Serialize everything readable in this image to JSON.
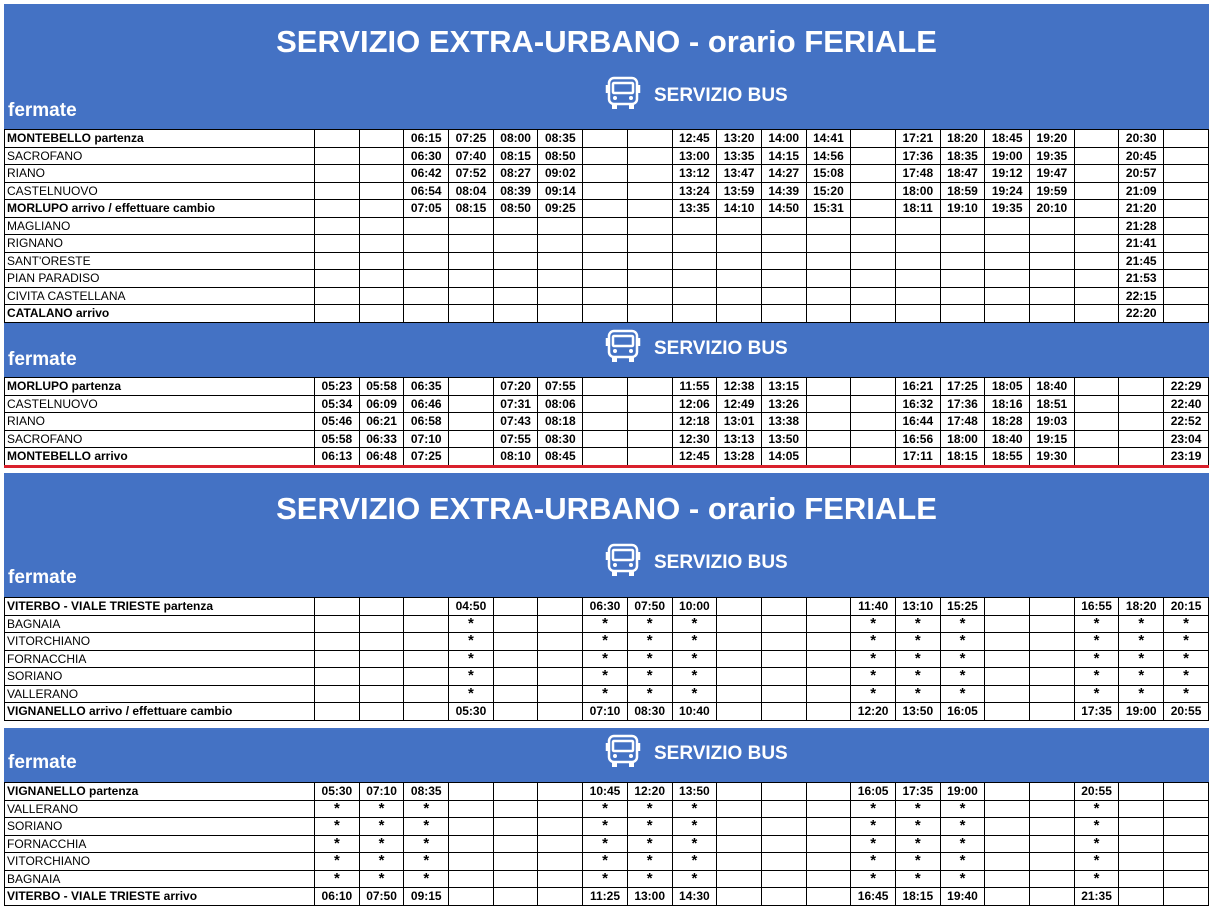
{
  "page_title": "SERVIZIO EXTRA-URBANO - orario FERIALE",
  "fermate_label": "fermate",
  "service_label": "SERVIZIO BUS",
  "icon": "bus-icon",
  "colors": {
    "banner": "#4472c4",
    "divider": "#d9202c"
  },
  "tables": [
    {
      "rows": [
        {
          "stop": "MONTEBELLO partenza",
          "strong": true,
          "times": [
            "",
            "",
            "06:15",
            "07:25",
            "08:00",
            "08:35",
            "",
            "",
            "12:45",
            "13:20",
            "14:00",
            "14:41",
            "",
            "17:21",
            "18:20",
            "18:45",
            "19:20",
            "",
            "20:30",
            ""
          ]
        },
        {
          "stop": "SACROFANO",
          "strong": false,
          "times": [
            "",
            "",
            "06:30",
            "07:40",
            "08:15",
            "08:50",
            "",
            "",
            "13:00",
            "13:35",
            "14:15",
            "14:56",
            "",
            "17:36",
            "18:35",
            "19:00",
            "19:35",
            "",
            "20:45",
            ""
          ]
        },
        {
          "stop": "RIANO",
          "strong": false,
          "times": [
            "",
            "",
            "06:42",
            "07:52",
            "08:27",
            "09:02",
            "",
            "",
            "13:12",
            "13:47",
            "14:27",
            "15:08",
            "",
            "17:48",
            "18:47",
            "19:12",
            "19:47",
            "",
            "20:57",
            ""
          ]
        },
        {
          "stop": "CASTELNUOVO",
          "strong": false,
          "times": [
            "",
            "",
            "06:54",
            "08:04",
            "08:39",
            "09:14",
            "",
            "",
            "13:24",
            "13:59",
            "14:39",
            "15:20",
            "",
            "18:00",
            "18:59",
            "19:24",
            "19:59",
            "",
            "21:09",
            ""
          ]
        },
        {
          "stop": "MORLUPO arrivo / effettuare cambio",
          "strong": true,
          "times": [
            "",
            "",
            "07:05",
            "08:15",
            "08:50",
            "09:25",
            "",
            "",
            "13:35",
            "14:10",
            "14:50",
            "15:31",
            "",
            "18:11",
            "19:10",
            "19:35",
            "20:10",
            "",
            "21:20",
            ""
          ]
        },
        {
          "stop": "MAGLIANO",
          "strong": false,
          "times": [
            "",
            "",
            "",
            "",
            "",
            "",
            "",
            "",
            "",
            "",
            "",
            "",
            "",
            "",
            "",
            "",
            "",
            "",
            "21:28",
            ""
          ]
        },
        {
          "stop": "RIGNANO",
          "strong": false,
          "times": [
            "",
            "",
            "",
            "",
            "",
            "",
            "",
            "",
            "",
            "",
            "",
            "",
            "",
            "",
            "",
            "",
            "",
            "",
            "21:41",
            ""
          ]
        },
        {
          "stop": "SANT'ORESTE",
          "strong": false,
          "times": [
            "",
            "",
            "",
            "",
            "",
            "",
            "",
            "",
            "",
            "",
            "",
            "",
            "",
            "",
            "",
            "",
            "",
            "",
            "21:45",
            ""
          ]
        },
        {
          "stop": "PIAN PARADISO",
          "strong": false,
          "times": [
            "",
            "",
            "",
            "",
            "",
            "",
            "",
            "",
            "",
            "",
            "",
            "",
            "",
            "",
            "",
            "",
            "",
            "",
            "21:53",
            ""
          ]
        },
        {
          "stop": "CIVITA CASTELLANA",
          "strong": false,
          "times": [
            "",
            "",
            "",
            "",
            "",
            "",
            "",
            "",
            "",
            "",
            "",
            "",
            "",
            "",
            "",
            "",
            "",
            "",
            "22:15",
            ""
          ]
        },
        {
          "stop": "CATALANO arrivo",
          "strong": true,
          "times": [
            "",
            "",
            "",
            "",
            "",
            "",
            "",
            "",
            "",
            "",
            "",
            "",
            "",
            "",
            "",
            "",
            "",
            "",
            "22:20",
            ""
          ]
        }
      ]
    },
    {
      "rows": [
        {
          "stop": "MORLUPO partenza",
          "strong": true,
          "times": [
            "05:23",
            "05:58",
            "06:35",
            "",
            "07:20",
            "07:55",
            "",
            "",
            "11:55",
            "12:38",
            "13:15",
            "",
            "",
            "16:21",
            "17:25",
            "18:05",
            "18:40",
            "",
            "",
            "22:29"
          ]
        },
        {
          "stop": "CASTELNUOVO",
          "strong": false,
          "times": [
            "05:34",
            "06:09",
            "06:46",
            "",
            "07:31",
            "08:06",
            "",
            "",
            "12:06",
            "12:49",
            "13:26",
            "",
            "",
            "16:32",
            "17:36",
            "18:16",
            "18:51",
            "",
            "",
            "22:40"
          ]
        },
        {
          "stop": "RIANO",
          "strong": false,
          "times": [
            "05:46",
            "06:21",
            "06:58",
            "",
            "07:43",
            "08:18",
            "",
            "",
            "12:18",
            "13:01",
            "13:38",
            "",
            "",
            "16:44",
            "17:48",
            "18:28",
            "19:03",
            "",
            "",
            "22:52"
          ]
        },
        {
          "stop": "SACROFANO",
          "strong": false,
          "times": [
            "05:58",
            "06:33",
            "07:10",
            "",
            "07:55",
            "08:30",
            "",
            "",
            "12:30",
            "13:13",
            "13:50",
            "",
            "",
            "16:56",
            "18:00",
            "18:40",
            "19:15",
            "",
            "",
            "23:04"
          ]
        },
        {
          "stop": "MONTEBELLO arrivo",
          "strong": true,
          "times": [
            "06:13",
            "06:48",
            "07:25",
            "",
            "08:10",
            "08:45",
            "",
            "",
            "12:45",
            "13:28",
            "14:05",
            "",
            "",
            "17:11",
            "18:15",
            "18:55",
            "19:30",
            "",
            "",
            "23:19"
          ]
        }
      ]
    },
    {
      "rows": [
        {
          "stop": "VITERBO - VIALE TRIESTE partenza",
          "strong": true,
          "times": [
            "",
            "",
            "",
            "04:50",
            "",
            "",
            "06:30",
            "07:50",
            "10:00",
            "",
            "",
            "",
            "11:40",
            "13:10",
            "15:25",
            "",
            "",
            "16:55",
            "18:20",
            "20:15"
          ]
        },
        {
          "stop": "BAGNAIA",
          "strong": false,
          "times": [
            "",
            "",
            "",
            "*",
            "",
            "",
            "*",
            "*",
            "*",
            "",
            "",
            "",
            "*",
            "*",
            "*",
            "",
            "",
            "*",
            "*",
            "*"
          ]
        },
        {
          "stop": "VITORCHIANO",
          "strong": false,
          "times": [
            "",
            "",
            "",
            "*",
            "",
            "",
            "*",
            "*",
            "*",
            "",
            "",
            "",
            "*",
            "*",
            "*",
            "",
            "",
            "*",
            "*",
            "*"
          ]
        },
        {
          "stop": "FORNACCHIA",
          "strong": false,
          "times": [
            "",
            "",
            "",
            "*",
            "",
            "",
            "*",
            "*",
            "*",
            "",
            "",
            "",
            "*",
            "*",
            "*",
            "",
            "",
            "*",
            "*",
            "*"
          ]
        },
        {
          "stop": "SORIANO",
          "strong": false,
          "times": [
            "",
            "",
            "",
            "*",
            "",
            "",
            "*",
            "*",
            "*",
            "",
            "",
            "",
            "*",
            "*",
            "*",
            "",
            "",
            "*",
            "*",
            "*"
          ]
        },
        {
          "stop": "VALLERANO",
          "strong": false,
          "times": [
            "",
            "",
            "",
            "*",
            "",
            "",
            "*",
            "*",
            "*",
            "",
            "",
            "",
            "*",
            "*",
            "*",
            "",
            "",
            "*",
            "*",
            "*"
          ]
        },
        {
          "stop": "VIGNANELLO arrivo / effettuare cambio",
          "strong": true,
          "times": [
            "",
            "",
            "",
            "05:30",
            "",
            "",
            "07:10",
            "08:30",
            "10:40",
            "",
            "",
            "",
            "12:20",
            "13:50",
            "16:05",
            "",
            "",
            "17:35",
            "19:00",
            "20:55"
          ]
        }
      ]
    },
    {
      "rows": [
        {
          "stop": "VIGNANELLO partenza",
          "strong": true,
          "times": [
            "05:30",
            "07:10",
            "08:35",
            "",
            "",
            "",
            "10:45",
            "12:20",
            "13:50",
            "",
            "",
            "",
            "16:05",
            "17:35",
            "19:00",
            "",
            "",
            "20:55",
            "",
            ""
          ]
        },
        {
          "stop": "VALLERANO",
          "strong": false,
          "times": [
            "*",
            "*",
            "*",
            "",
            "",
            "",
            "*",
            "*",
            "*",
            "",
            "",
            "",
            "*",
            "*",
            "*",
            "",
            "",
            "*",
            "",
            ""
          ]
        },
        {
          "stop": "SORIANO",
          "strong": false,
          "times": [
            "*",
            "*",
            "*",
            "",
            "",
            "",
            "*",
            "*",
            "*",
            "",
            "",
            "",
            "*",
            "*",
            "*",
            "",
            "",
            "*",
            "",
            ""
          ]
        },
        {
          "stop": "FORNACCHIA",
          "strong": false,
          "times": [
            "*",
            "*",
            "*",
            "",
            "",
            "",
            "*",
            "*",
            "*",
            "",
            "",
            "",
            "*",
            "*",
            "*",
            "",
            "",
            "*",
            "",
            ""
          ]
        },
        {
          "stop": "VITORCHIANO",
          "strong": false,
          "times": [
            "*",
            "*",
            "*",
            "",
            "",
            "",
            "*",
            "*",
            "*",
            "",
            "",
            "",
            "*",
            "*",
            "*",
            "",
            "",
            "*",
            "",
            ""
          ]
        },
        {
          "stop": "BAGNAIA",
          "strong": false,
          "times": [
            "*",
            "*",
            "*",
            "",
            "",
            "",
            "*",
            "*",
            "*",
            "",
            "",
            "",
            "*",
            "*",
            "*",
            "",
            "",
            "*",
            "",
            ""
          ]
        },
        {
          "stop": "VITERBO - VIALE TRIESTE arrivo",
          "strong": true,
          "times": [
            "06:10",
            "07:50",
            "09:15",
            "",
            "",
            "",
            "11:25",
            "13:00",
            "14:30",
            "",
            "",
            "",
            "16:45",
            "18:15",
            "19:40",
            "",
            "",
            "21:35",
            "",
            ""
          ]
        }
      ]
    }
  ]
}
